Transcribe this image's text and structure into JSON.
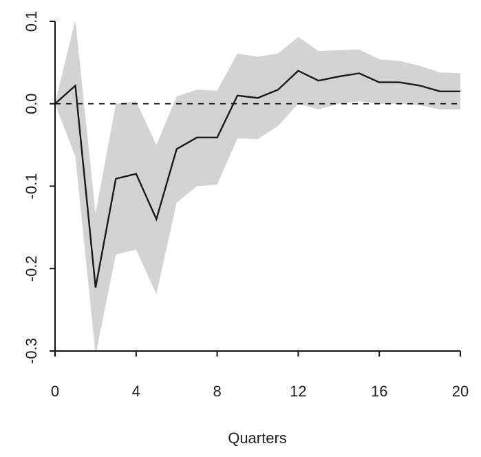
{
  "chart_data": {
    "type": "line",
    "title": "",
    "xlabel": "Quarters",
    "ylabel": "",
    "xlim": [
      0,
      20
    ],
    "ylim": [
      -0.3,
      0.1
    ],
    "x_ticks": [
      "0",
      "4",
      "8",
      "12",
      "16",
      "20"
    ],
    "x_tick_values": [
      0,
      4,
      8,
      12,
      16,
      20
    ],
    "y_ticks": [
      "-0.3",
      "-0.2",
      "-0.1",
      "0.0",
      "0.1"
    ],
    "y_tick_values": [
      -0.3,
      -0.2,
      -0.1,
      0.0,
      0.1
    ],
    "reference_line": 0.0,
    "x": [
      0,
      1,
      2,
      3,
      4,
      5,
      6,
      7,
      8,
      9,
      10,
      11,
      12,
      13,
      14,
      15,
      16,
      17,
      18,
      19,
      20
    ],
    "series": [
      {
        "name": "response",
        "color": "#1a1a1a",
        "values": [
          0,
          0.022,
          -0.223,
          -0.091,
          -0.085,
          -0.14,
          -0.055,
          -0.041,
          -0.041,
          0.01,
          0.007,
          0.017,
          0.04,
          0.028,
          0.033,
          0.037,
          0.026,
          0.026,
          0.022,
          0.015,
          0.015
        ]
      }
    ],
    "band": {
      "color": "#d3d3d3",
      "upper": [
        0,
        0.102,
        -0.133,
        0.0,
        0.003,
        -0.05,
        0.009,
        0.017,
        0.016,
        0.061,
        0.057,
        0.061,
        0.081,
        0.064,
        0.065,
        0.066,
        0.054,
        0.052,
        0.046,
        0.038,
        0.037
      ],
      "lower": [
        0,
        -0.064,
        -0.305,
        -0.183,
        -0.177,
        -0.231,
        -0.12,
        -0.1,
        -0.098,
        -0.042,
        -0.043,
        -0.027,
        0.0,
        -0.007,
        0.0,
        0.003,
        0.0,
        0.0,
        -0.002,
        -0.007,
        -0.007
      ]
    }
  }
}
